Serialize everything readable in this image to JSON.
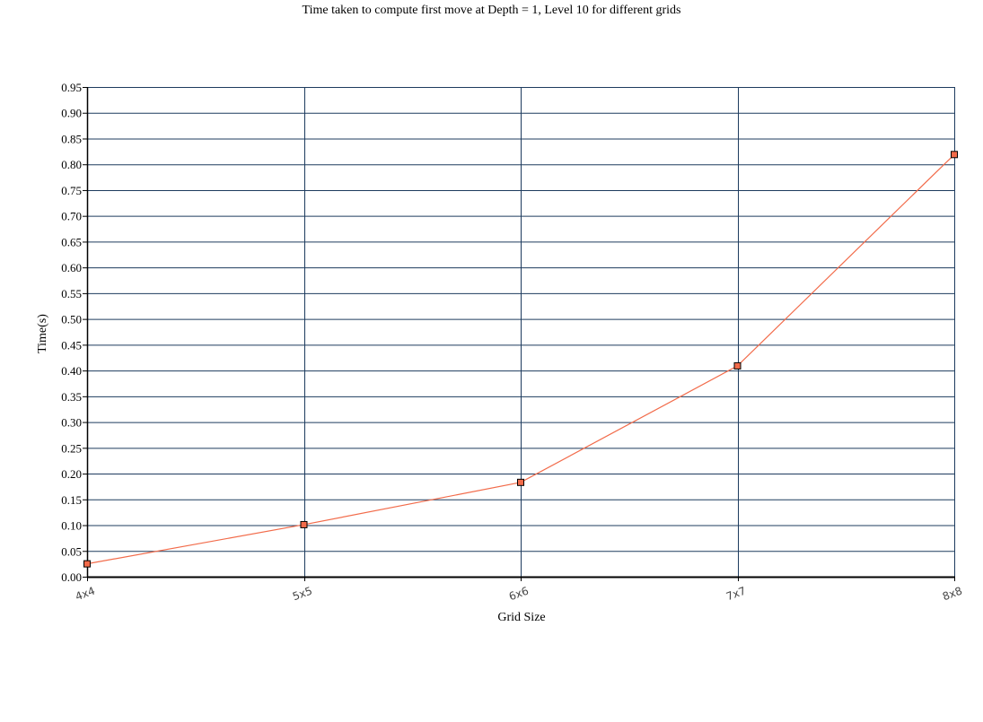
{
  "chart_data": {
    "type": "line",
    "title": "Time taken to compute first move at Depth = 1, Level 10 for different grids",
    "xlabel": "Grid Size",
    "ylabel": "Time(s)",
    "categories": [
      "4x4",
      "5x5",
      "6x6",
      "7x7",
      "8x8"
    ],
    "series": [
      {
        "values": [
          0.025,
          0.101,
          0.183,
          0.409,
          0.819
        ]
      }
    ],
    "ylim": [
      0,
      0.95
    ],
    "yticks": [
      "0.00",
      "0.05",
      "0.10",
      "0.15",
      "0.20",
      "0.25",
      "0.30",
      "0.35",
      "0.40",
      "0.45",
      "0.50",
      "0.55",
      "0.60",
      "0.65",
      "0.70",
      "0.75",
      "0.80",
      "0.85",
      "0.90",
      "0.95"
    ],
    "grid": true,
    "colors": {
      "line": "#f26b4a",
      "marker_fill": "#f26b4a",
      "marker_stroke": "#000000",
      "grid": "#1d3b5e",
      "axis": "#000000"
    }
  }
}
